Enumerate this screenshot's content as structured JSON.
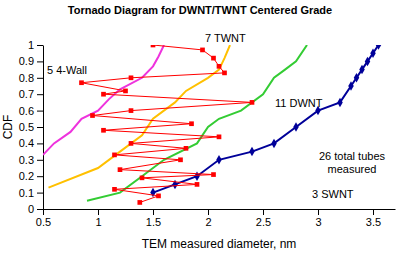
{
  "chart_data": {
    "type": "line",
    "title": "Tornado Diagram for DWNT/TWNT Centered Grade",
    "x_label": "TEM measured diameter, nm",
    "y_label": "CDF",
    "annotation": [
      "26 total tubes",
      "measured"
    ],
    "xlim": [
      0.5,
      3.7
    ],
    "xticks": [
      0.5,
      1,
      1.5,
      2,
      2.5,
      3,
      3.5
    ],
    "ylim": [
      0,
      1
    ],
    "yticks": [
      0,
      0.1,
      0.2,
      0.3,
      0.4,
      0.5,
      0.6,
      0.7,
      0.8,
      0.9,
      1
    ],
    "grid": false,
    "series": [
      {
        "name": "5 4-Wall",
        "color": "#ee33dd",
        "marker": "none",
        "x": [
          0.5,
          0.6,
          0.75,
          0.85,
          1.0,
          1.1,
          1.2,
          1.4,
          1.5,
          1.55,
          1.6
        ],
        "values": [
          0.33,
          0.4,
          0.47,
          0.55,
          0.6,
          0.67,
          0.73,
          0.8,
          0.87,
          0.93,
          1.0
        ]
      },
      {
        "name": "7 TWNT",
        "color": "#ffc000",
        "marker": "none",
        "x": [
          0.55,
          1.0,
          1.2,
          1.4,
          1.5,
          1.7,
          1.8,
          2.0,
          2.1,
          2.15,
          2.2
        ],
        "values": [
          0.13,
          0.25,
          0.35,
          0.45,
          0.55,
          0.65,
          0.72,
          0.8,
          0.85,
          0.92,
          1.0
        ]
      },
      {
        "name": "11 DWNT",
        "color": "#33cc33",
        "marker": "none",
        "x": [
          0.9,
          1.2,
          1.4,
          1.6,
          1.9,
          2.0,
          2.1,
          2.3,
          2.5,
          2.6,
          2.7,
          2.8,
          2.9
        ],
        "values": [
          0.05,
          0.1,
          0.2,
          0.3,
          0.4,
          0.5,
          0.55,
          0.6,
          0.7,
          0.8,
          0.85,
          0.9,
          1.0
        ]
      },
      {
        "name": "3 SWNT",
        "color": "#000099",
        "marker": "diamond",
        "x": [
          1.5,
          1.7,
          1.9,
          2.1,
          2.4,
          2.6,
          2.8,
          3.0,
          3.2,
          3.3,
          3.35,
          3.4,
          3.45,
          3.5,
          3.55
        ],
        "values": [
          0.1,
          0.15,
          0.2,
          0.3,
          0.35,
          0.4,
          0.5,
          0.6,
          0.65,
          0.75,
          0.8,
          0.85,
          0.9,
          0.95,
          1.0
        ]
      },
      {
        "color": "#ff0000",
        "marker": "square",
        "x": [
          1.38,
          1.55,
          1.15,
          1.9,
          1.4,
          2.05,
          1.2,
          1.75,
          1.15,
          1.8,
          1.3,
          2.1,
          1.05,
          1.85,
          0.95,
          1.3,
          2.4,
          1.05,
          1.25,
          0.85,
          1.3,
          2.15,
          2.1,
          2.05,
          1.95,
          1.5
        ],
        "values": [
          0.04,
          0.08,
          0.12,
          0.15,
          0.19,
          0.21,
          0.24,
          0.3,
          0.33,
          0.37,
          0.4,
          0.44,
          0.48,
          0.52,
          0.57,
          0.6,
          0.65,
          0.7,
          0.72,
          0.77,
          0.8,
          0.83,
          0.87,
          0.92,
          0.97,
          1.0
        ]
      }
    ]
  }
}
